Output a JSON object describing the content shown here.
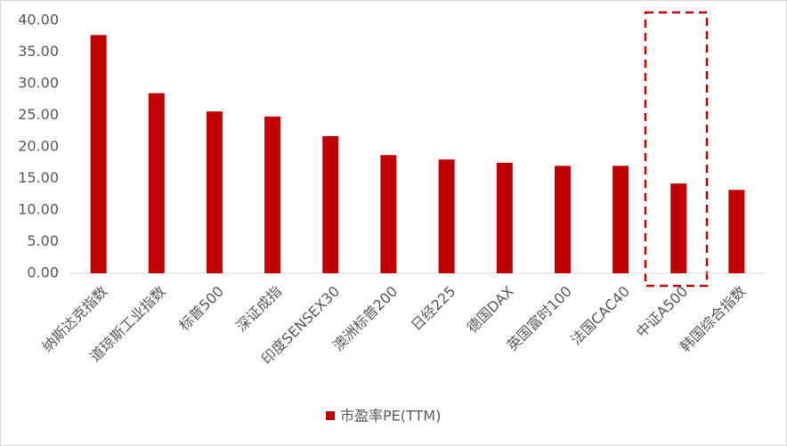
{
  "chart_data": {
    "type": "bar",
    "categories": [
      "纳斯达克指数",
      "道琼斯工业指数",
      "标普500",
      "深证成指",
      "印度SENSEX30",
      "澳洲标普200",
      "日经225",
      "德国DAX",
      "英国富时100",
      "法国CAC40",
      "中证A500",
      "韩国综合指数"
    ],
    "series": [
      {
        "name": "市盈率PE(TTM)",
        "color": "#c00000",
        "values": [
          37.7,
          28.5,
          25.6,
          24.8,
          21.7,
          18.7,
          18.0,
          17.5,
          17.0,
          17.0,
          14.2,
          13.2
        ]
      }
    ],
    "ylim": [
      0,
      40
    ],
    "yticks": [
      {
        "value": 0,
        "label": "0.00"
      },
      {
        "value": 5,
        "label": "5.00"
      },
      {
        "value": 10,
        "label": "10.00"
      },
      {
        "value": 15,
        "label": "15.00"
      },
      {
        "value": 20,
        "label": "20.00"
      },
      {
        "value": 25,
        "label": "25.00"
      },
      {
        "value": 30,
        "label": "30.00"
      },
      {
        "value": 35,
        "label": "35.00"
      },
      {
        "value": 40,
        "label": "40.00"
      }
    ],
    "grid": false,
    "legend": "bottom"
  }
}
